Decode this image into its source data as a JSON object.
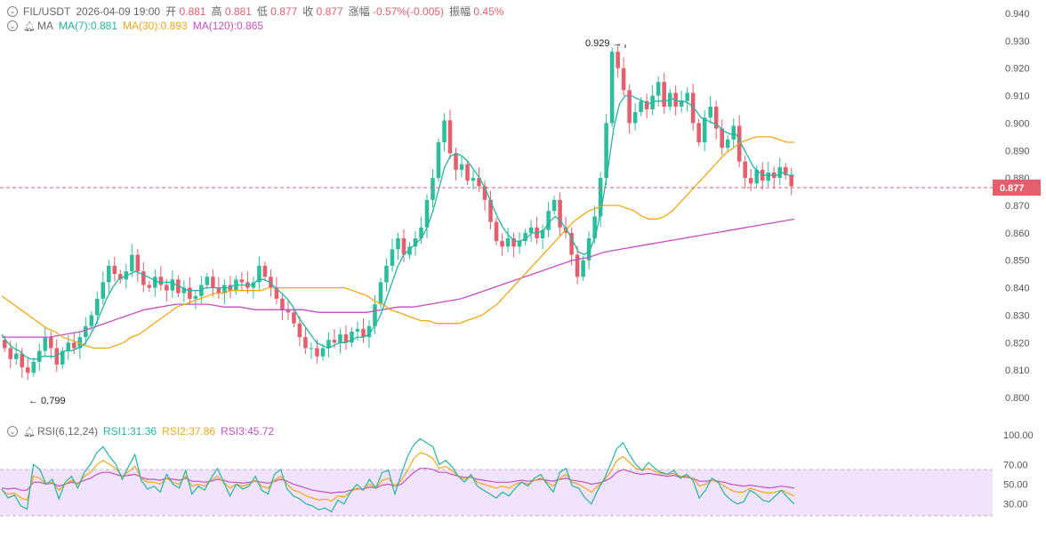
{
  "header": {
    "symbol": "FIL/USDT",
    "datetime": "2026-04-09 19:00",
    "open_label": "开",
    "open": "0.881",
    "high_label": "高",
    "high": "0.881",
    "low_label": "低",
    "low": "0.877",
    "close_label": "收",
    "close": "0.877",
    "change_label": "涨幅",
    "change": "-0.57%(-0.005)",
    "amplitude_label": "振幅",
    "amplitude": "0.45%"
  },
  "ma_legend": {
    "label": "MA",
    "ma7": "MA(7):0.881",
    "ma30": "MA(30):0.893",
    "ma120": "MA(120):0.865"
  },
  "rsi_legend": {
    "label": "RSI(6,12,24)",
    "rsi1": "RSI1:31.36",
    "rsi2": "RSI2:37.86",
    "rsi3": "RSI3:45.72"
  },
  "price_axis": [
    "0.940",
    "0.930",
    "0.920",
    "0.910",
    "0.900",
    "0.890",
    "0.880",
    "0.870",
    "0.860",
    "0.850",
    "0.840",
    "0.830",
    "0.820",
    "0.810",
    "0.800"
  ],
  "rsi_axis": [
    "100.00",
    "70.00",
    "50.00",
    "30.00"
  ],
  "current_price": "0.877",
  "high_marker": "0.929 →",
  "low_marker": "← 0.799",
  "colors": {
    "up": "#2ebd9b",
    "down": "#e55e6c",
    "ma7": "#22b5a0",
    "ma30": "#f0a71a",
    "ma120": "#c64fc4",
    "rsi_band": "#f1e3fb"
  },
  "chart_data": {
    "type": "candlestick",
    "interval": "1h",
    "ylim": [
      0.795,
      0.943
    ],
    "price_path": [
      0.818,
      0.814,
      0.816,
      0.811,
      0.809,
      0.813,
      0.817,
      0.822,
      0.818,
      0.812,
      0.817,
      0.82,
      0.818,
      0.822,
      0.826,
      0.83,
      0.836,
      0.842,
      0.848,
      0.845,
      0.843,
      0.846,
      0.852,
      0.846,
      0.841,
      0.84,
      0.844,
      0.841,
      0.839,
      0.843,
      0.838,
      0.84,
      0.836,
      0.837,
      0.841,
      0.844,
      0.84,
      0.838,
      0.841,
      0.839,
      0.843,
      0.842,
      0.84,
      0.842,
      0.848,
      0.844,
      0.84,
      0.836,
      0.832,
      0.831,
      0.827,
      0.822,
      0.818,
      0.818,
      0.815,
      0.818,
      0.821,
      0.82,
      0.823,
      0.82,
      0.824,
      0.825,
      0.822,
      0.826,
      0.834,
      0.842,
      0.848,
      0.854,
      0.858,
      0.852,
      0.855,
      0.858,
      0.862,
      0.872,
      0.88,
      0.893,
      0.901,
      0.889,
      0.883,
      0.885,
      0.879,
      0.88,
      0.877,
      0.872,
      0.864,
      0.857,
      0.855,
      0.858,
      0.855,
      0.857,
      0.86,
      0.862,
      0.858,
      0.861,
      0.868,
      0.872,
      0.862,
      0.86,
      0.852,
      0.844,
      0.85,
      0.858,
      0.866,
      0.88,
      0.9,
      0.926,
      0.92,
      0.912,
      0.9,
      0.904,
      0.908,
      0.905,
      0.91,
      0.915,
      0.906,
      0.911,
      0.906,
      0.908,
      0.911,
      0.9,
      0.893,
      0.902,
      0.906,
      0.898,
      0.891,
      0.894,
      0.899,
      0.886,
      0.88,
      0.878,
      0.883,
      0.879,
      0.882,
      0.88,
      0.884,
      0.881,
      0.877
    ],
    "ma7": [
      0.823,
      0.82,
      0.818,
      0.817,
      0.815,
      0.814,
      0.814,
      0.815,
      0.815,
      0.815,
      0.816,
      0.817,
      0.817,
      0.818,
      0.819,
      0.822,
      0.826,
      0.831,
      0.836,
      0.84,
      0.843,
      0.844,
      0.845,
      0.846,
      0.845,
      0.844,
      0.843,
      0.842,
      0.842,
      0.842,
      0.841,
      0.84,
      0.839,
      0.839,
      0.839,
      0.84,
      0.84,
      0.84,
      0.84,
      0.84,
      0.841,
      0.841,
      0.841,
      0.841,
      0.843,
      0.843,
      0.842,
      0.84,
      0.838,
      0.836,
      0.833,
      0.829,
      0.826,
      0.823,
      0.82,
      0.819,
      0.818,
      0.819,
      0.82,
      0.82,
      0.821,
      0.822,
      0.822,
      0.823,
      0.826,
      0.83,
      0.836,
      0.842,
      0.848,
      0.852,
      0.854,
      0.856,
      0.858,
      0.862,
      0.868,
      0.876,
      0.884,
      0.888,
      0.889,
      0.888,
      0.886,
      0.883,
      0.88,
      0.876,
      0.871,
      0.866,
      0.862,
      0.859,
      0.857,
      0.857,
      0.858,
      0.86,
      0.86,
      0.861,
      0.864,
      0.866,
      0.864,
      0.861,
      0.857,
      0.853,
      0.852,
      0.854,
      0.86,
      0.87,
      0.883,
      0.898,
      0.907,
      0.91,
      0.91,
      0.909,
      0.908,
      0.907,
      0.908,
      0.908,
      0.908,
      0.909,
      0.908,
      0.908,
      0.907,
      0.905,
      0.902,
      0.901,
      0.9,
      0.899,
      0.897,
      0.896,
      0.896,
      0.892,
      0.888,
      0.884,
      0.882,
      0.881,
      0.881,
      0.881,
      0.882,
      0.881,
      0.881
    ],
    "ma30": [
      0.837,
      0.835,
      0.833,
      0.831,
      0.829,
      0.827,
      0.825,
      0.824,
      0.822,
      0.821,
      0.82,
      0.819,
      0.818,
      0.818,
      0.818,
      0.819,
      0.82,
      0.822,
      0.823,
      0.825,
      0.827,
      0.829,
      0.831,
      0.833,
      0.834,
      0.835,
      0.836,
      0.837,
      0.838,
      0.838,
      0.839,
      0.839,
      0.839,
      0.839,
      0.839,
      0.84,
      0.84,
      0.84,
      0.84,
      0.84,
      0.84,
      0.84,
      0.84,
      0.84,
      0.84,
      0.84,
      0.839,
      0.838,
      0.837,
      0.835,
      0.834,
      0.832,
      0.831,
      0.83,
      0.829,
      0.828,
      0.828,
      0.827,
      0.827,
      0.827,
      0.827,
      0.828,
      0.829,
      0.83,
      0.832,
      0.834,
      0.837,
      0.84,
      0.843,
      0.846,
      0.849,
      0.852,
      0.855,
      0.858,
      0.861,
      0.864,
      0.866,
      0.868,
      0.869,
      0.87,
      0.87,
      0.87,
      0.869,
      0.868,
      0.866,
      0.865,
      0.865,
      0.866,
      0.868,
      0.871,
      0.874,
      0.877,
      0.88,
      0.883,
      0.886,
      0.889,
      0.891,
      0.893,
      0.894,
      0.895,
      0.895,
      0.895,
      0.894,
      0.893,
      0.893
    ],
    "ma120": [
      0.822,
      0.822,
      0.822,
      0.822,
      0.823,
      0.824,
      0.826,
      0.828,
      0.83,
      0.832,
      0.833,
      0.834,
      0.834,
      0.834,
      0.833,
      0.833,
      0.832,
      0.832,
      0.832,
      0.832,
      0.831,
      0.831,
      0.831,
      0.831,
      0.832,
      0.833,
      0.833,
      0.834,
      0.835,
      0.836,
      0.838,
      0.84,
      0.842,
      0.844,
      0.846,
      0.848,
      0.85,
      0.851,
      0.853,
      0.854,
      0.855,
      0.856,
      0.857,
      0.858,
      0.859,
      0.86,
      0.861,
      0.862,
      0.863,
      0.864,
      0.865
    ],
    "rsi1": [
      45,
      36,
      39,
      28,
      25,
      70,
      65,
      50,
      55,
      35,
      52,
      58,
      46,
      62,
      70,
      82,
      88,
      78,
      70,
      55,
      68,
      80,
      54,
      45,
      48,
      42,
      60,
      50,
      46,
      64,
      40,
      48,
      44,
      56,
      66,
      52,
      38,
      50,
      45,
      48,
      58,
      44,
      40,
      60,
      65,
      45,
      38,
      35,
      30,
      28,
      24,
      26,
      22,
      34,
      30,
      42,
      50,
      44,
      55,
      46,
      62,
      64,
      40,
      60,
      78,
      90,
      96,
      92,
      88,
      70,
      74,
      68,
      58,
      52,
      60,
      48,
      44,
      40,
      36,
      42,
      38,
      46,
      52,
      48,
      56,
      60,
      50,
      42,
      62,
      66,
      48,
      46,
      36,
      30,
      44,
      55,
      70,
      86,
      92,
      80,
      70,
      64,
      72,
      66,
      62,
      60,
      64,
      56,
      60,
      54,
      36,
      44,
      56,
      52,
      40,
      34,
      30,
      32,
      44,
      40,
      34,
      32,
      38,
      44,
      36,
      30
    ],
    "rsi2": [
      44,
      40,
      41,
      36,
      34,
      58,
      56,
      50,
      52,
      44,
      50,
      54,
      50,
      58,
      62,
      70,
      74,
      70,
      66,
      58,
      63,
      68,
      56,
      52,
      52,
      50,
      56,
      52,
      50,
      58,
      48,
      50,
      48,
      54,
      58,
      52,
      46,
      50,
      48,
      50,
      54,
      48,
      46,
      54,
      58,
      50,
      44,
      42,
      38,
      36,
      34,
      35,
      33,
      38,
      37,
      42,
      46,
      44,
      50,
      46,
      54,
      56,
      48,
      54,
      64,
      76,
      82,
      80,
      76,
      66,
      68,
      64,
      58,
      55,
      58,
      52,
      50,
      48,
      46,
      48,
      46,
      50,
      52,
      50,
      54,
      56,
      52,
      48,
      56,
      60,
      52,
      50,
      46,
      42,
      48,
      54,
      62,
      74,
      78,
      72,
      66,
      64,
      66,
      63,
      61,
      60,
      61,
      58,
      58,
      56,
      48,
      50,
      54,
      52,
      48,
      44,
      42,
      42,
      46,
      44,
      42,
      41,
      42,
      44,
      41,
      38
    ],
    "rsi3": [
      46,
      45,
      46,
      44,
      44,
      52,
      52,
      50,
      51,
      48,
      50,
      52,
      51,
      54,
      56,
      60,
      62,
      62,
      60,
      58,
      59,
      60,
      57,
      55,
      55,
      54,
      56,
      55,
      54,
      56,
      53,
      53,
      52,
      53,
      55,
      54,
      52,
      52,
      51,
      52,
      53,
      52,
      51,
      53,
      55,
      53,
      50,
      48,
      46,
      44,
      43,
      42,
      41,
      42,
      42,
      44,
      45,
      45,
      47,
      46,
      49,
      50,
      48,
      50,
      56,
      62,
      66,
      66,
      65,
      62,
      62,
      60,
      58,
      57,
      57,
      55,
      54,
      53,
      52,
      52,
      52,
      53,
      54,
      53,
      54,
      55,
      54,
      53,
      55,
      56,
      54,
      53,
      52,
      50,
      51,
      53,
      56,
      62,
      65,
      63,
      61,
      60,
      61,
      60,
      59,
      58,
      59,
      57,
      57,
      56,
      53,
      53,
      54,
      53,
      52,
      50,
      49,
      48,
      49,
      48,
      47,
      46,
      47,
      48,
      47,
      46
    ]
  }
}
